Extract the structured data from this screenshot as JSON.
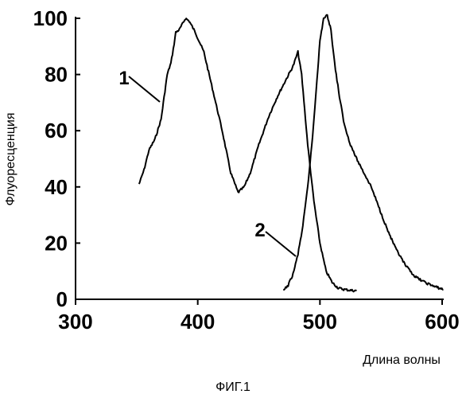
{
  "chart_data": {
    "type": "line",
    "title": "",
    "xlabel": "Длина волны",
    "ylabel": "Флуоресценция",
    "xlim": [
      300,
      600
    ],
    "ylim": [
      0,
      100
    ],
    "xticks": [
      "300",
      "400",
      "500",
      "600"
    ],
    "yticks": [
      "0",
      "20",
      "40",
      "60",
      "80",
      "100"
    ],
    "grid": false,
    "legend": "none",
    "caption": "ФИГ.1",
    "annotations": [
      "1",
      "2"
    ],
    "series": [
      {
        "id": "1",
        "x": [
          352,
          356,
          360,
          365,
          370,
          375,
          378,
          380,
          382,
          385,
          390,
          393,
          398,
          405,
          412,
          420,
          427,
          433,
          438,
          443,
          450,
          458,
          465,
          472,
          478,
          482,
          485,
          490,
          495,
          500,
          505,
          510,
          515,
          520,
          525,
          530
        ],
        "y": [
          41,
          46,
          53,
          57,
          64,
          80,
          84,
          89,
          95,
          96,
          100,
          99,
          95,
          88,
          75,
          60,
          45,
          38,
          40,
          45,
          55,
          65,
          72,
          78,
          83,
          88,
          80,
          55,
          35,
          20,
          10,
          6,
          4,
          3.5,
          3.2,
          3
        ],
        "color": "#000000"
      },
      {
        "id": "2",
        "x": [
          470,
          474,
          478,
          482,
          486,
          490,
          494,
          497,
          500,
          503,
          506,
          509,
          512,
          516,
          520,
          525,
          530,
          536,
          542,
          548,
          555,
          562,
          570,
          578,
          586,
          594,
          601
        ],
        "y": [
          3,
          5,
          9,
          16,
          26,
          40,
          58,
          75,
          92,
          100,
          101,
          96,
          84,
          72,
          62,
          55,
          50,
          45,
          40,
          33,
          25,
          18,
          12,
          8,
          6,
          4.5,
          3.5
        ],
        "color": "#000000"
      }
    ]
  }
}
